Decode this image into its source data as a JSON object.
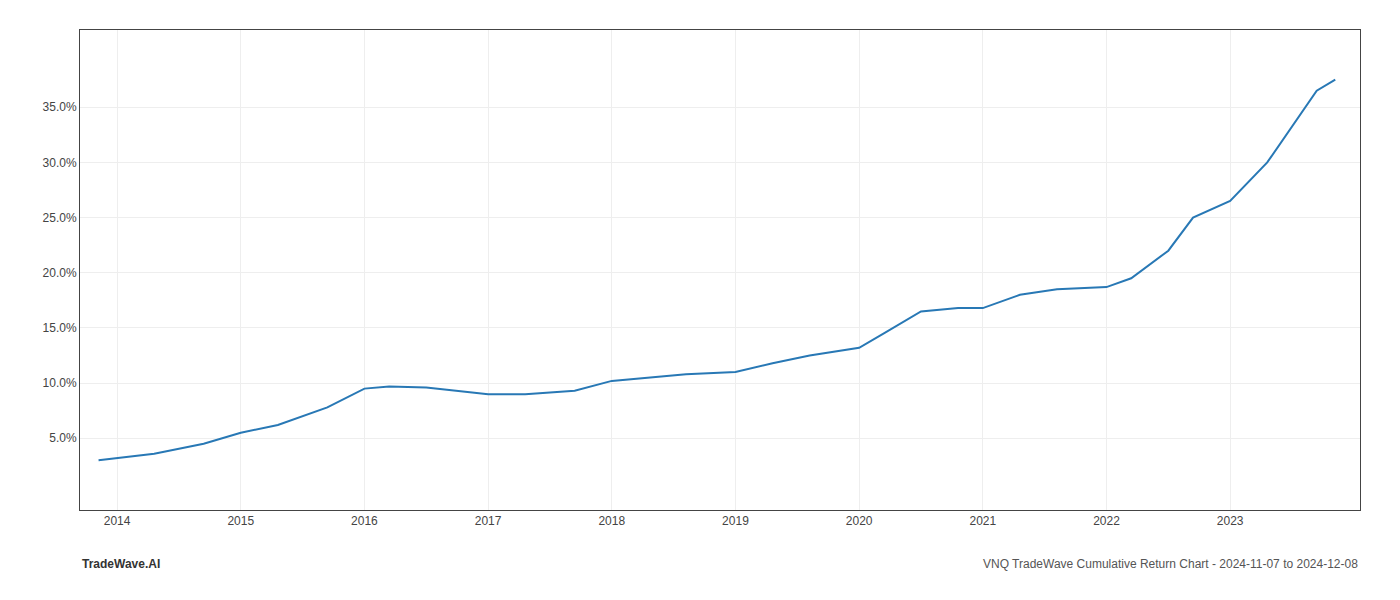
{
  "chart_data": {
    "type": "line",
    "x": [
      2013.85,
      2014.0,
      2014.3,
      2014.7,
      2015.0,
      2015.3,
      2015.7,
      2016.0,
      2016.2,
      2016.5,
      2017.0,
      2017.3,
      2017.7,
      2018.0,
      2018.3,
      2018.6,
      2019.0,
      2019.3,
      2019.6,
      2020.0,
      2020.2,
      2020.5,
      2020.8,
      2021.0,
      2021.3,
      2021.6,
      2022.0,
      2022.2,
      2022.5,
      2022.7,
      2023.0,
      2023.3,
      2023.7,
      2023.85
    ],
    "values": [
      3.0,
      3.2,
      3.6,
      4.5,
      5.5,
      6.2,
      7.8,
      9.5,
      9.7,
      9.6,
      9.0,
      9.0,
      9.3,
      10.2,
      10.5,
      10.8,
      11.0,
      11.8,
      12.5,
      13.2,
      14.5,
      16.5,
      16.8,
      16.8,
      18.0,
      18.5,
      18.7,
      19.5,
      22.0,
      25.0,
      26.5,
      30.0,
      36.5,
      37.5
    ],
    "color": "#2878b5",
    "xlim": [
      2013.7,
      2024.05
    ],
    "ylim": [
      -1.5,
      42.0
    ],
    "xticks": [
      2014,
      2015,
      2016,
      2017,
      2018,
      2019,
      2020,
      2021,
      2022,
      2023
    ],
    "yticks": [
      {
        "value": 5.0,
        "label": "5.0%"
      },
      {
        "value": 10.0,
        "label": "10.0%"
      },
      {
        "value": 15.0,
        "label": "15.0%"
      },
      {
        "value": 20.0,
        "label": "20.0%"
      },
      {
        "value": 25.0,
        "label": "25.0%"
      },
      {
        "value": 30.0,
        "label": "30.0%"
      },
      {
        "value": 35.0,
        "label": "35.0%"
      }
    ],
    "grid": true,
    "annotations": [
      "TradeWave.AI",
      "VNQ TradeWave Cumulative Return Chart - 2024-11-07 to 2024-12-08"
    ]
  }
}
